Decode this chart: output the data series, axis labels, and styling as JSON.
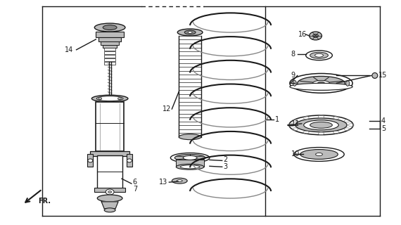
{
  "bg_color": "#ffffff",
  "line_color": "#1a1a1a",
  "gray1": "#bbbbbb",
  "gray2": "#888888",
  "gray3": "#555555",
  "figsize": [
    5.7,
    3.2
  ],
  "dpi": 100
}
